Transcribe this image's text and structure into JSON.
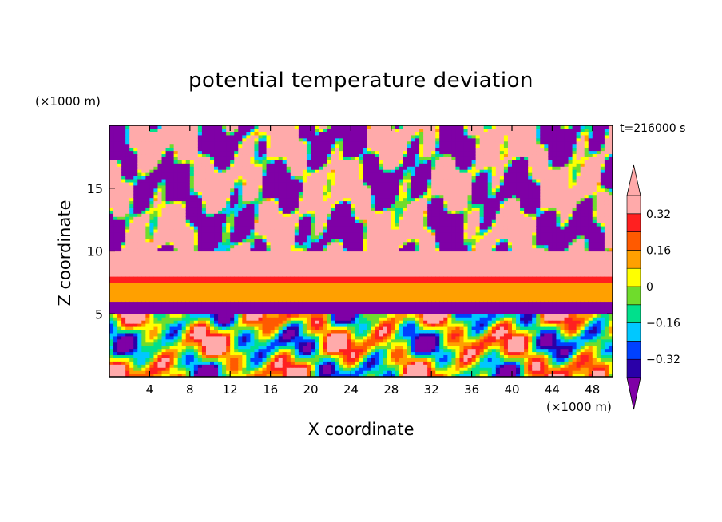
{
  "chart_data": {
    "type": "heatmap",
    "title": "potential temperature deviation",
    "xlabel": "X coordinate",
    "ylabel": "Z coordinate",
    "x_units": "(×1000 m)",
    "y_units": "(×1000 m)",
    "time_label": "t=216000 s",
    "xlim": [
      0,
      50
    ],
    "ylim": [
      0,
      20
    ],
    "x_ticks": [
      4,
      8,
      12,
      16,
      20,
      24,
      28,
      32,
      36,
      40,
      44,
      48
    ],
    "y_ticks": [
      5,
      10,
      15
    ],
    "colorbar": {
      "levels": [
        -0.4,
        -0.32,
        -0.24,
        -0.16,
        -0.08,
        0,
        0.08,
        0.16,
        0.24,
        0.32,
        0.4
      ],
      "tick_labels": [
        "0.32",
        "0.16",
        "0",
        "−0.16",
        "−0.32"
      ],
      "tick_values": [
        0.32,
        0.16,
        0,
        -0.16,
        -0.32
      ],
      "colors": [
        "#7f00a6",
        "#2a00a8",
        "#0041ff",
        "#00c8ff",
        "#00e08c",
        "#6fdc2c",
        "#ffff00",
        "#ffa000",
        "#ff5a00",
        "#ff2020",
        "#ffaaaa"
      ],
      "extend": "both"
    },
    "bands": [
      {
        "z_range": [
          17.5,
          20
        ],
        "field": "mixed",
        "value": 0.4
      },
      {
        "z_range": [
          10,
          17.5
        ],
        "field": "mixed",
        "value": -0.4
      },
      {
        "z_range": [
          8,
          10
        ],
        "field": "uniform",
        "value": 0.4
      },
      {
        "z_range": [
          7.5,
          8
        ],
        "field": "uniform",
        "value": 0.3
      },
      {
        "z_range": [
          6,
          7.5
        ],
        "field": "uniform",
        "value": 0.16
      },
      {
        "z_range": [
          5,
          6
        ],
        "field": "uniform",
        "value": -0.4
      },
      {
        "z_range": [
          0,
          5
        ],
        "field": "turbulent",
        "value": -0.1
      }
    ]
  }
}
